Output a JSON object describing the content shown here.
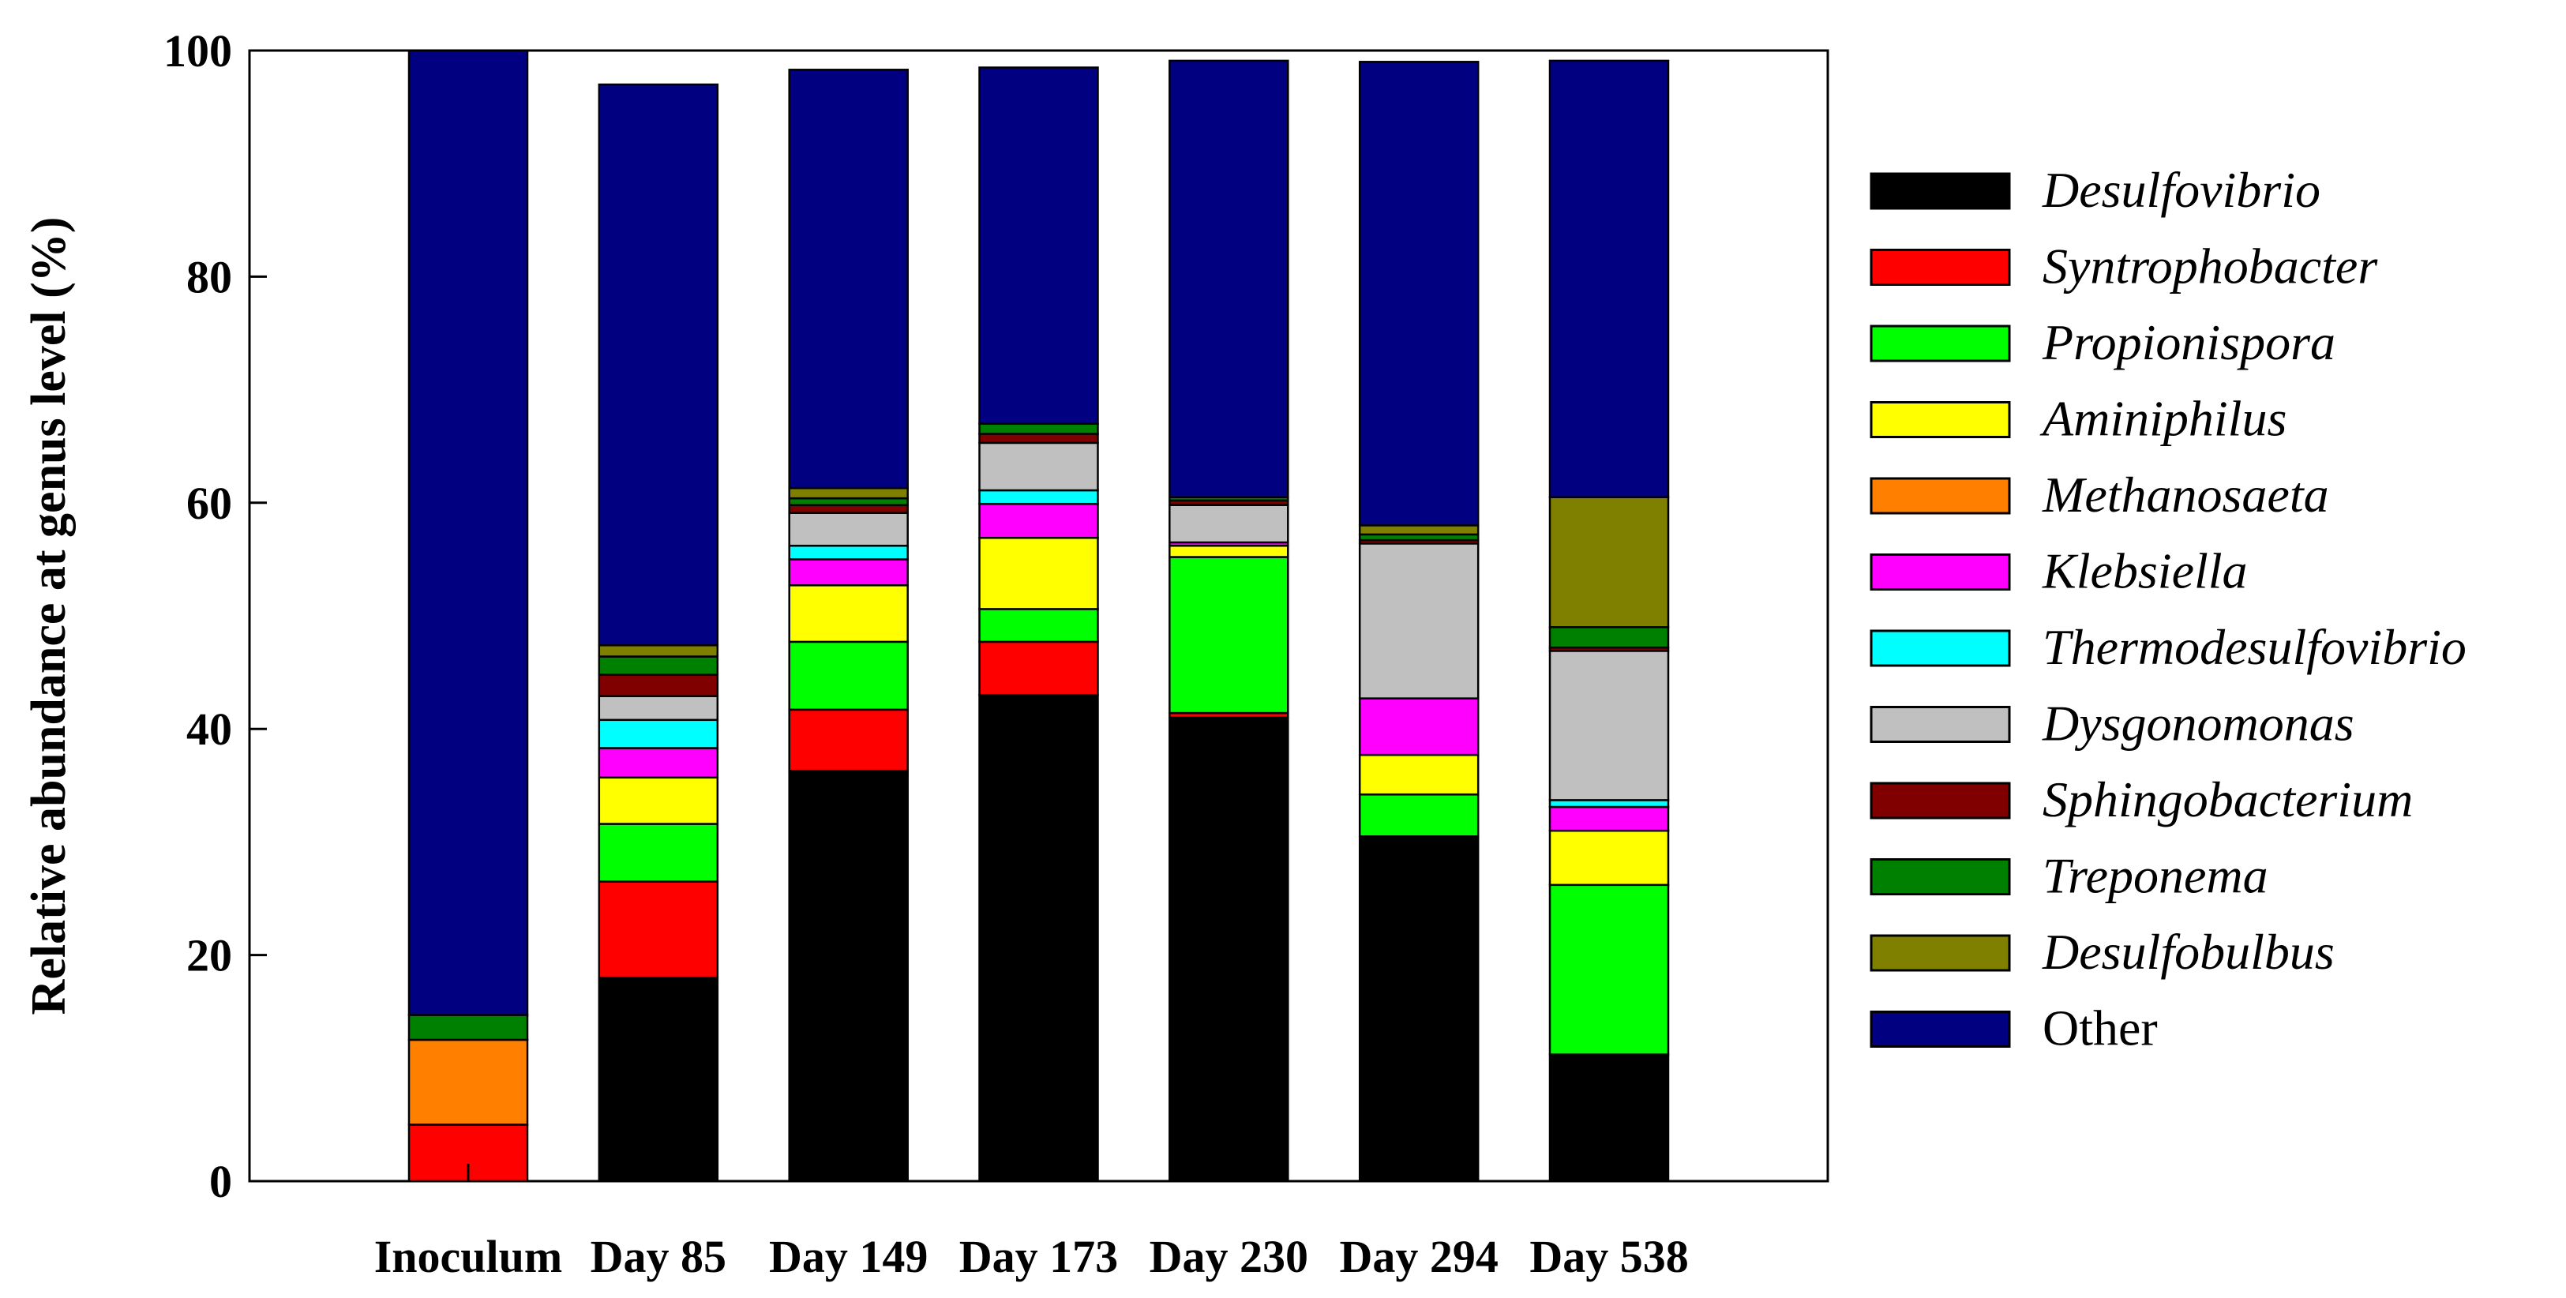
{
  "chart_data": {
    "type": "bar",
    "stacked": true,
    "ylabel": "Relative abundance at genus level (%)",
    "xlabel": "",
    "ylim": [
      0,
      100
    ],
    "yticks": [
      0,
      20,
      40,
      60,
      80,
      100
    ],
    "grid": false,
    "legend_position": "right",
    "categories": [
      "Inoculum",
      "Day 85",
      "Day 149",
      "Day 173",
      "Day 230",
      "Day 294",
      "Day 538"
    ],
    "series": [
      {
        "name": "Desulfovibrio",
        "color": "#000000",
        "italic": true,
        "values": [
          0,
          18.0,
          36.3,
          43.0,
          41.0,
          30.5,
          11.2
        ]
      },
      {
        "name": "Syntrophobacter",
        "color": "#ff0000",
        "italic": true,
        "values": [
          5.0,
          8.5,
          5.4,
          4.7,
          0.4,
          0.0,
          0.0
        ]
      },
      {
        "name": "Propionispora",
        "color": "#00ff00",
        "italic": true,
        "values": [
          0,
          5.1,
          6.0,
          2.9,
          13.8,
          3.7,
          15.0
        ]
      },
      {
        "name": "Aminiphilus",
        "color": "#ffff00",
        "italic": true,
        "values": [
          0,
          4.1,
          5.0,
          6.3,
          1.0,
          3.5,
          4.8
        ]
      },
      {
        "name": "Methanosaeta",
        "color": "#ff8000",
        "italic": true,
        "values": [
          7.5,
          0,
          0,
          0,
          0,
          0,
          0
        ]
      },
      {
        "name": "Klebsiella",
        "color": "#ff00ff",
        "italic": true,
        "values": [
          0,
          2.6,
          2.3,
          3.0,
          0.3,
          5.0,
          2.1
        ]
      },
      {
        "name": "Thermodesulfovibrio",
        "color": "#00ffff",
        "italic": true,
        "values": [
          0,
          2.5,
          1.2,
          1.2,
          0,
          0,
          0.6
        ]
      },
      {
        "name": "Dysgonomonas",
        "color": "#c0c0c0",
        "italic": true,
        "values": [
          0,
          2.1,
          2.9,
          4.2,
          3.3,
          13.7,
          13.2
        ]
      },
      {
        "name": "Sphingobacterium",
        "color": "#800000",
        "italic": true,
        "values": [
          0,
          1.9,
          0.7,
          0.8,
          0.4,
          0.3,
          0.3
        ]
      },
      {
        "name": "Treponema",
        "color": "#008000",
        "italic": true,
        "values": [
          2.2,
          1.6,
          0.6,
          0.9,
          0.3,
          0.5,
          1.8
        ]
      },
      {
        "name": "Desulfobulbus",
        "color": "#808000",
        "italic": true,
        "values": [
          0,
          1.0,
          0.9,
          0,
          0,
          0.8,
          11.5
        ]
      },
      {
        "name": "Other",
        "color": "#000080",
        "italic": false,
        "values": [
          85.3,
          49.6,
          37.0,
          31.5,
          38.6,
          41.0,
          38.6
        ]
      }
    ]
  }
}
